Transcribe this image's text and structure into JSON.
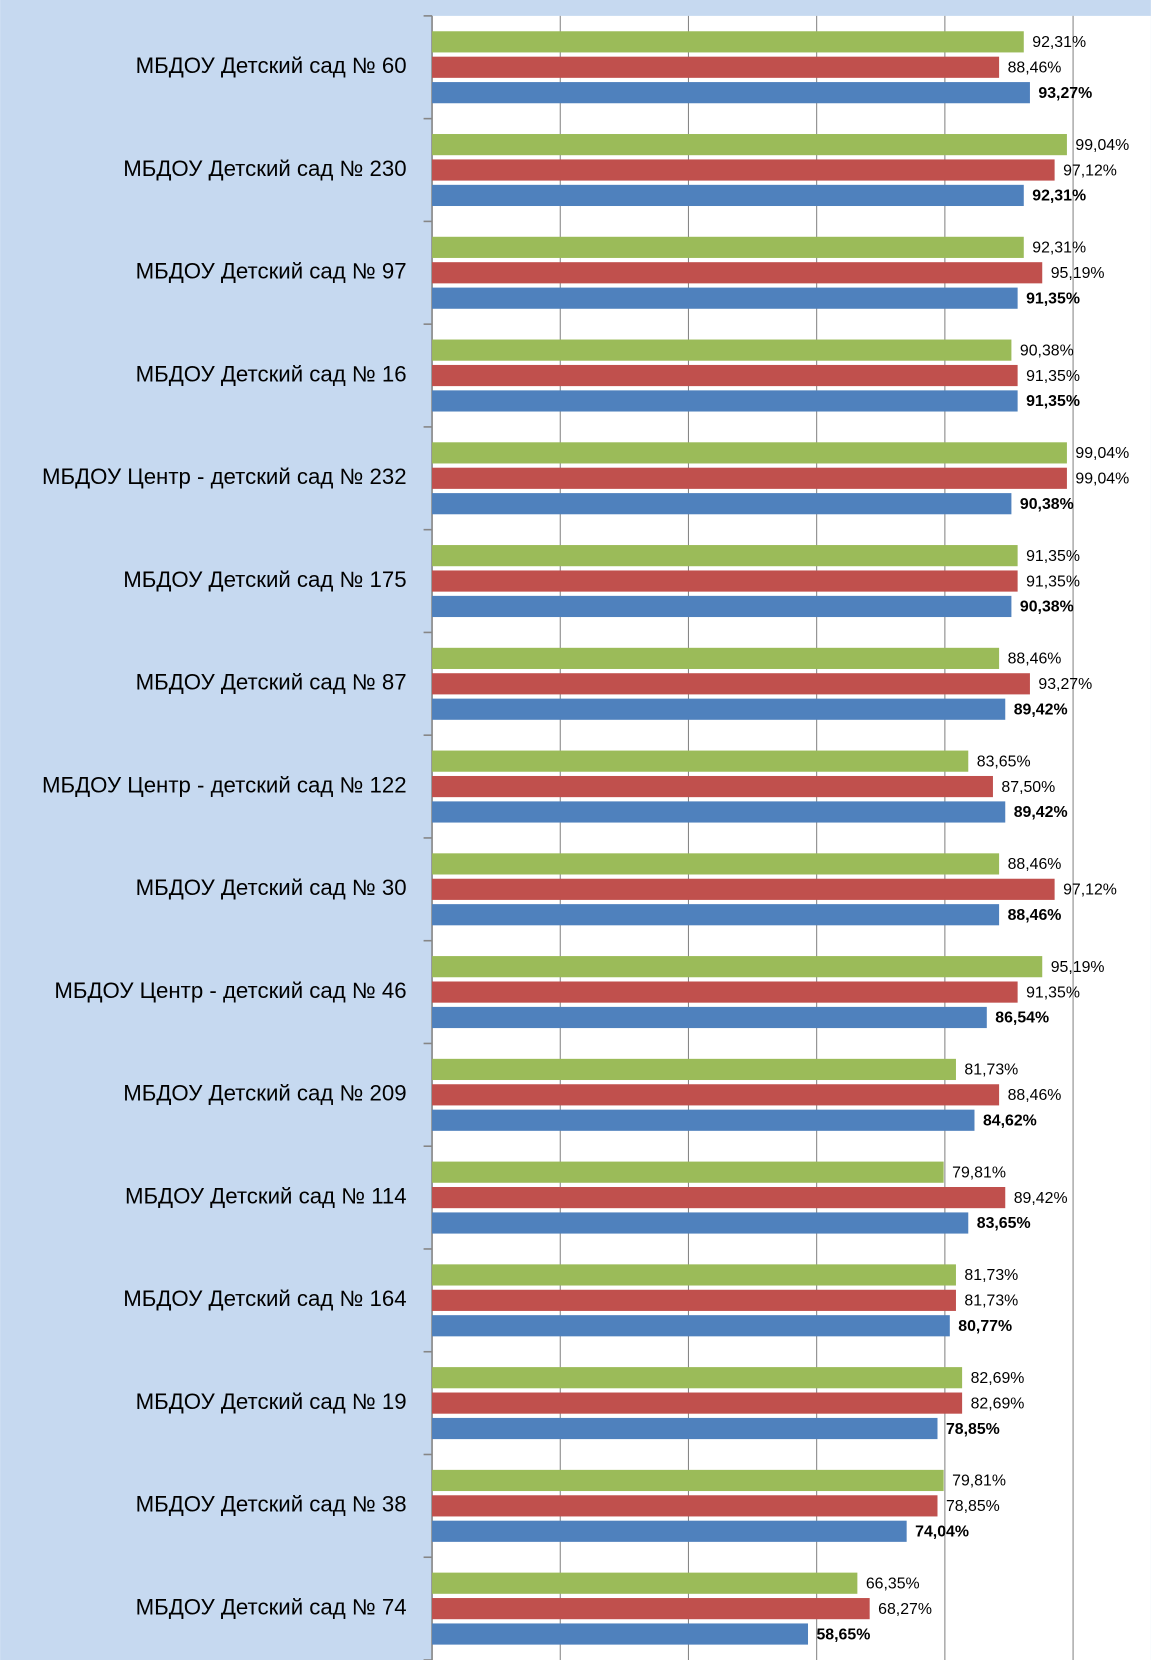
{
  "chart_data": {
    "type": "bar",
    "orientation": "horizontal",
    "categories": [
      "МБДОУ Детский сад № 60",
      "МБДОУ Детский сад № 230",
      "МБДОУ Детский сад № 97",
      "МБДОУ Детский сад № 16",
      "МБДОУ Центр - детский сад № 232",
      "МБДОУ Детский сад № 175",
      "МБДОУ Детский сад № 87",
      "МБДОУ Центр - детский сад № 122",
      "МБДОУ Детский сад № 30",
      "МБДОУ Центр - детский сад № 46",
      "МБДОУ Детский сад № 209",
      "МБДОУ Детский сад № 114",
      "МБДОУ Детский сад № 164",
      "МБДОУ Детский сад № 19",
      "МБДОУ Детский сад № 38",
      "МБДОУ Детский сад № 74"
    ],
    "series": [
      {
        "color": "#9bbb59",
        "bold": false,
        "values": [
          92.31,
          99.04,
          92.31,
          90.38,
          99.04,
          91.35,
          88.46,
          83.65,
          88.46,
          95.19,
          81.73,
          79.81,
          81.73,
          82.69,
          79.81,
          66.35
        ],
        "value_labels": [
          "92,31%",
          "99,04%",
          "92,31%",
          "90,38%",
          "99,04%",
          "91,35%",
          "88,46%",
          "83,65%",
          "88,46%",
          "95,19%",
          "81,73%",
          "79,81%",
          "81,73%",
          "82,69%",
          "79,81%",
          "66,35%"
        ]
      },
      {
        "color": "#c0504d",
        "bold": false,
        "values": [
          88.46,
          97.12,
          95.19,
          91.35,
          99.04,
          91.35,
          93.27,
          87.5,
          97.12,
          91.35,
          88.46,
          89.42,
          81.73,
          82.69,
          78.85,
          68.27
        ],
        "value_labels": [
          "88,46%",
          "97,12%",
          "95,19%",
          "91,35%",
          "99,04%",
          "91,35%",
          "93,27%",
          "87,50%",
          "97,12%",
          "91,35%",
          "88,46%",
          "89,42%",
          "81,73%",
          "82,69%",
          "78,85%",
          "68,27%"
        ]
      },
      {
        "color": "#4f81bd",
        "bold": true,
        "values": [
          93.27,
          92.31,
          91.35,
          91.35,
          90.38,
          90.38,
          89.42,
          89.42,
          88.46,
          86.54,
          84.62,
          83.65,
          80.77,
          78.85,
          74.04,
          58.65
        ],
        "value_labels": [
          "93,27%",
          "92,31%",
          "91,35%",
          "91,35%",
          "90,38%",
          "90,38%",
          "89,42%",
          "89,42%",
          "88,46%",
          "86,54%",
          "84,62%",
          "83,65%",
          "80,77%",
          "78,85%",
          "74,04%",
          "58,65%"
        ]
      }
    ],
    "xlim": [
      0,
      100
    ],
    "xticks": [
      0,
      20,
      40,
      60,
      80,
      100
    ],
    "grid": true
  }
}
